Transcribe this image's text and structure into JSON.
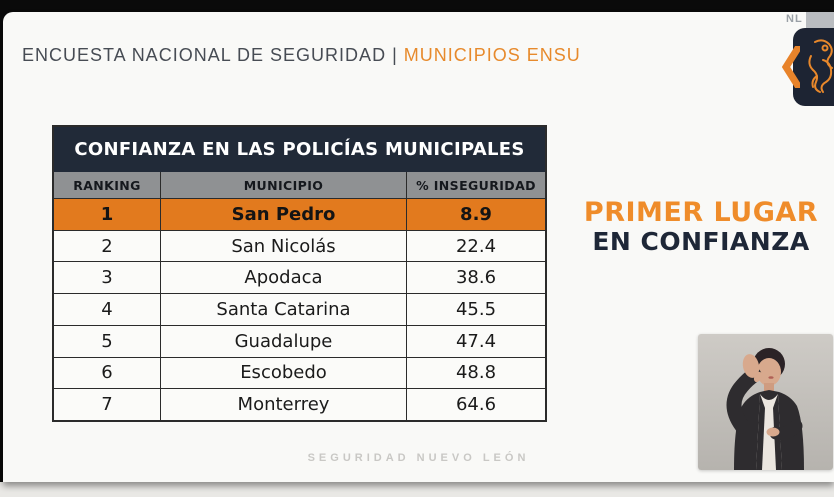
{
  "header": {
    "title_main": "ENCUESTA NACIONAL DE SEGURIDAD",
    "separator": "|",
    "title_accent": "MUNICIPIOS ENSU"
  },
  "badge": {
    "state_label": "NL"
  },
  "table": {
    "title": "CONFIANZA EN LAS POLICÍAS MUNICIPALES",
    "columns": [
      "RANKING",
      "MUNICIPIO",
      "% INSEGURIDAD"
    ],
    "rows": [
      {
        "ranking": "1",
        "municipio": "San Pedro",
        "valor": "8.9",
        "highlight": true
      },
      {
        "ranking": "2",
        "municipio": "San Nicolás",
        "valor": "22.4",
        "highlight": false
      },
      {
        "ranking": "3",
        "municipio": "Apodaca",
        "valor": "38.6",
        "highlight": false
      },
      {
        "ranking": "4",
        "municipio": "Santa Catarina",
        "valor": "45.5",
        "highlight": false
      },
      {
        "ranking": "5",
        "municipio": "Guadalupe",
        "valor": "47.4",
        "highlight": false
      },
      {
        "ranking": "6",
        "municipio": "Escobedo",
        "valor": "48.8",
        "highlight": false
      },
      {
        "ranking": "7",
        "municipio": "Monterrey",
        "valor": "64.6",
        "highlight": false
      }
    ]
  },
  "callout": {
    "line1": "PRIMER LUGAR",
    "line2": "EN CONFIANZA"
  },
  "watermark": "SEGURIDAD NUEVO LEÓN",
  "colors": {
    "highlight_orange": "#e27a1e",
    "headline_orange": "#ef8c2a",
    "navy": "#212a38",
    "header_gray": "#8f9193",
    "frame_black": "#0a0a0a"
  },
  "chart_data": {
    "type": "table",
    "title": "CONFIANZA EN LAS POLICÍAS MUNICIPALES",
    "columns": [
      "RANKING",
      "MUNICIPIO",
      "% INSEGURIDAD"
    ],
    "rows": [
      [
        1,
        "San Pedro",
        8.9
      ],
      [
        2,
        "San Nicolás",
        22.4
      ],
      [
        3,
        "Apodaca",
        38.6
      ],
      [
        4,
        "Santa Catarina",
        45.5
      ],
      [
        5,
        "Guadalupe",
        47.4
      ],
      [
        6,
        "Escobedo",
        48.8
      ],
      [
        7,
        "Monterrey",
        64.6
      ]
    ],
    "highlight_row_index": 0,
    "annotation": "PRIMER LUGAR EN CONFIANZA",
    "value_range": [
      8.9,
      64.6
    ]
  }
}
